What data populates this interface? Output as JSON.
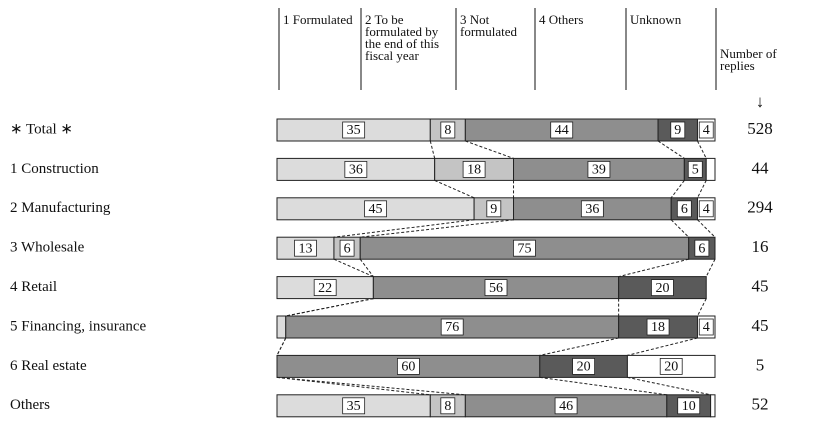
{
  "chart_data": {
    "type": "stacked-bar-100",
    "categories": [
      "∗ Total ∗",
      "1 Construction",
      "2 Manufacturing",
      "3 Wholesale",
      "4 Retail",
      "5 Financing, insurance",
      "6 Real estate",
      "Others"
    ],
    "series": [
      {
        "name": "1 Formulated",
        "color": "#dcdcdc",
        "values": [
          35,
          36,
          45,
          13,
          22,
          2,
          0,
          35
        ]
      },
      {
        "name": "2 To be formulated by the end of this fiscal year",
        "color": "#c4c4c4",
        "values": [
          8,
          18,
          9,
          6,
          0,
          0,
          0,
          8
        ]
      },
      {
        "name": "3 Not formulated",
        "color": "#8e8e8e",
        "values": [
          44,
          39,
          36,
          75,
          56,
          76,
          60,
          46
        ]
      },
      {
        "name": "4 Others",
        "color": "#5a5a5a",
        "values": [
          9,
          5,
          6,
          6,
          20,
          18,
          20,
          10
        ]
      },
      {
        "name": "Unknown",
        "color": "#ffffff",
        "values": [
          4,
          2,
          4,
          0,
          0,
          4,
          20,
          1
        ]
      }
    ],
    "replies_label": "Number of replies",
    "replies": [
      528,
      44,
      294,
      16,
      45,
      45,
      5,
      52
    ],
    "xlim": [
      0,
      100
    ]
  }
}
